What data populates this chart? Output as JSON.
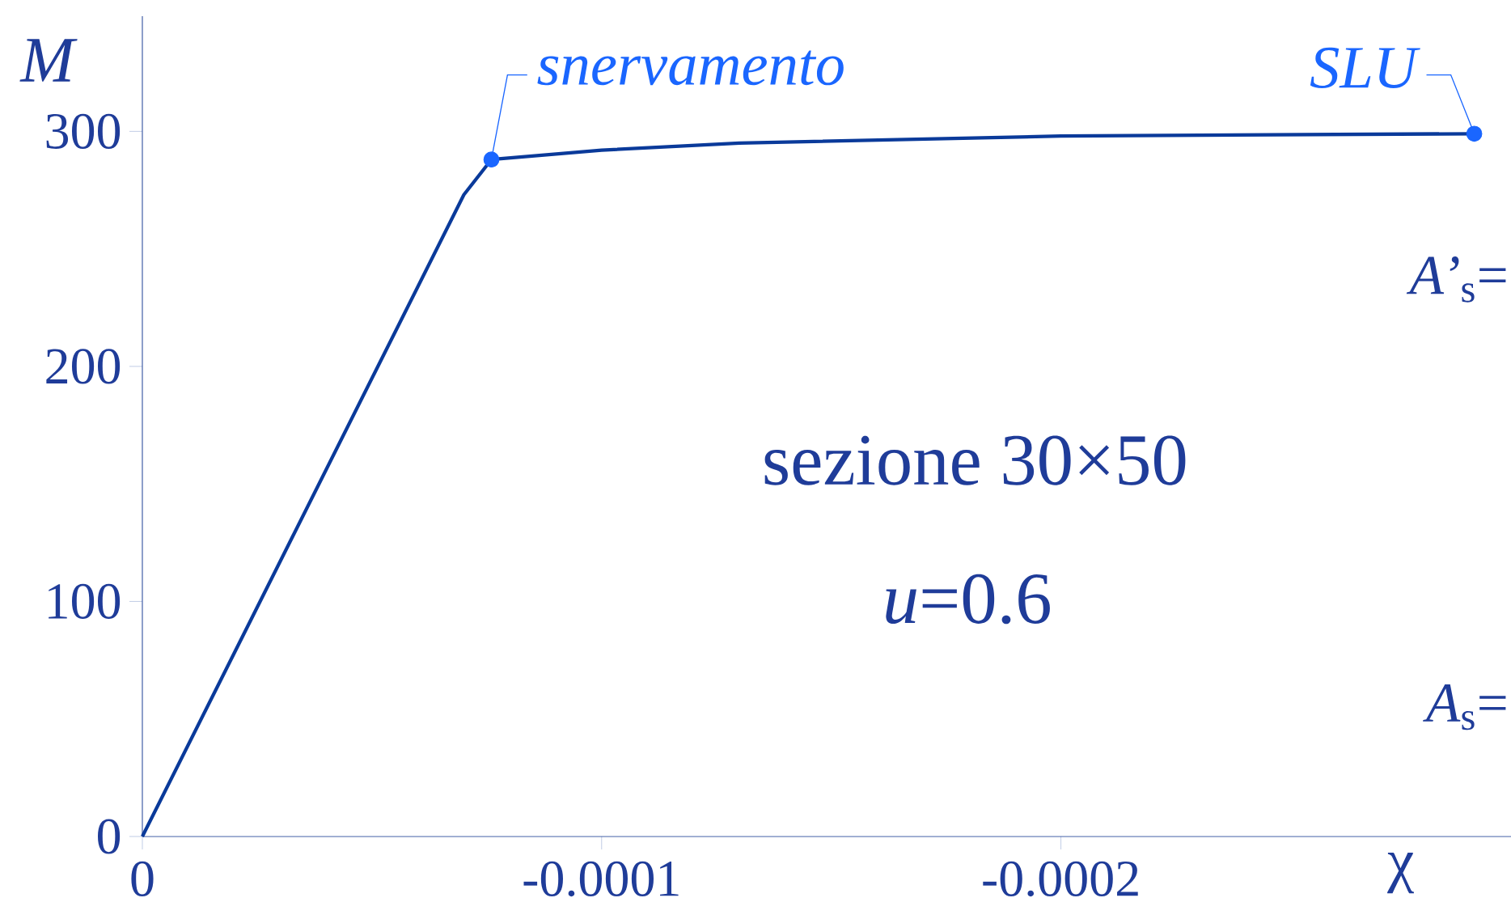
{
  "chart_data": {
    "type": "line",
    "xlabel": "χ",
    "ylabel": "M",
    "x": [
      0,
      -7e-05,
      -7.6e-05,
      -0.0001,
      -0.00013,
      -0.0002,
      -0.00029
    ],
    "series": [
      {
        "type": "line",
        "color": "#0a3a9a",
        "marker": "none",
        "values": [
          0,
          273,
          288,
          292,
          295,
          298,
          299
        ]
      },
      {
        "type": "scatter",
        "color": "#1a66ff",
        "x": [
          -7.6e-05,
          -0.00029
        ],
        "values": [
          288,
          299
        ]
      }
    ],
    "xlim": [
      0,
      -0.000298
    ],
    "ylim": [
      0,
      349
    ],
    "xticks": [
      0,
      -0.0001,
      -0.0002
    ],
    "yticks": [
      0,
      100,
      200,
      300
    ],
    "annotations": [
      {
        "text": "snervamento",
        "x": -7.6e-05,
        "y": 288
      },
      {
        "text": "SLU",
        "x": -0.00029,
        "y": 299
      },
      "sezione 30×50",
      "*u*=0.6",
      "*A’*$_{s}$=",
      "*A*$_{s}$="
    ]
  }
}
